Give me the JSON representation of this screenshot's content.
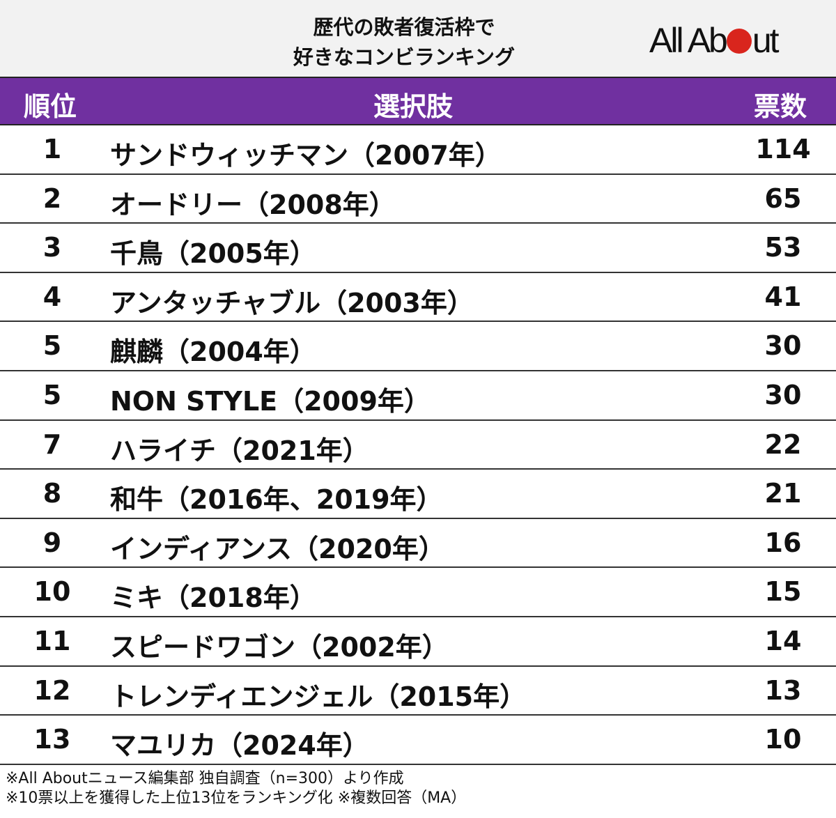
{
  "header": {
    "title_line1": "歴代の敗者復活枠で",
    "title_line2": "好きなコンビランキング",
    "logo_text": "All About"
  },
  "colors": {
    "header_bg": "#7030a0",
    "logo_dot": "#d9251d"
  },
  "chart_data": {
    "type": "table",
    "title": "歴代の敗者復活枠で好きなコンビランキング",
    "columns": [
      "順位",
      "選択肢",
      "票数"
    ],
    "rows": [
      {
        "rank": "1",
        "name": "サンドウィッチマン（2007年）",
        "votes": "114"
      },
      {
        "rank": "2",
        "name": "オードリー（2008年）",
        "votes": "65"
      },
      {
        "rank": "3",
        "name": "千鳥（2005年）",
        "votes": "53"
      },
      {
        "rank": "4",
        "name": "アンタッチャブル（2003年）",
        "votes": "41"
      },
      {
        "rank": "5",
        "name": "麒麟（2004年）",
        "votes": "30"
      },
      {
        "rank": "5",
        "name": "NON STYLE（2009年）",
        "votes": "30"
      },
      {
        "rank": "7",
        "name": "ハライチ（2021年）",
        "votes": "22"
      },
      {
        "rank": "8",
        "name": "和牛（2016年、2019年）",
        "votes": "21"
      },
      {
        "rank": "9",
        "name": "インディアンス（2020年）",
        "votes": "16"
      },
      {
        "rank": "10",
        "name": "ミキ（2018年）",
        "votes": "15"
      },
      {
        "rank": "11",
        "name": "スピードワゴン（2002年）",
        "votes": "14"
      },
      {
        "rank": "12",
        "name": "トレンディエンジェル（2015年）",
        "votes": "13"
      },
      {
        "rank": "13",
        "name": "マユリカ（2024年）",
        "votes": "10"
      }
    ]
  },
  "notes": [
    "※All Aboutニュース編集部 独自調査（n=300）より作成",
    "※10票以上を獲得した上位13位をランキング化 ※複数回答（MA）"
  ]
}
